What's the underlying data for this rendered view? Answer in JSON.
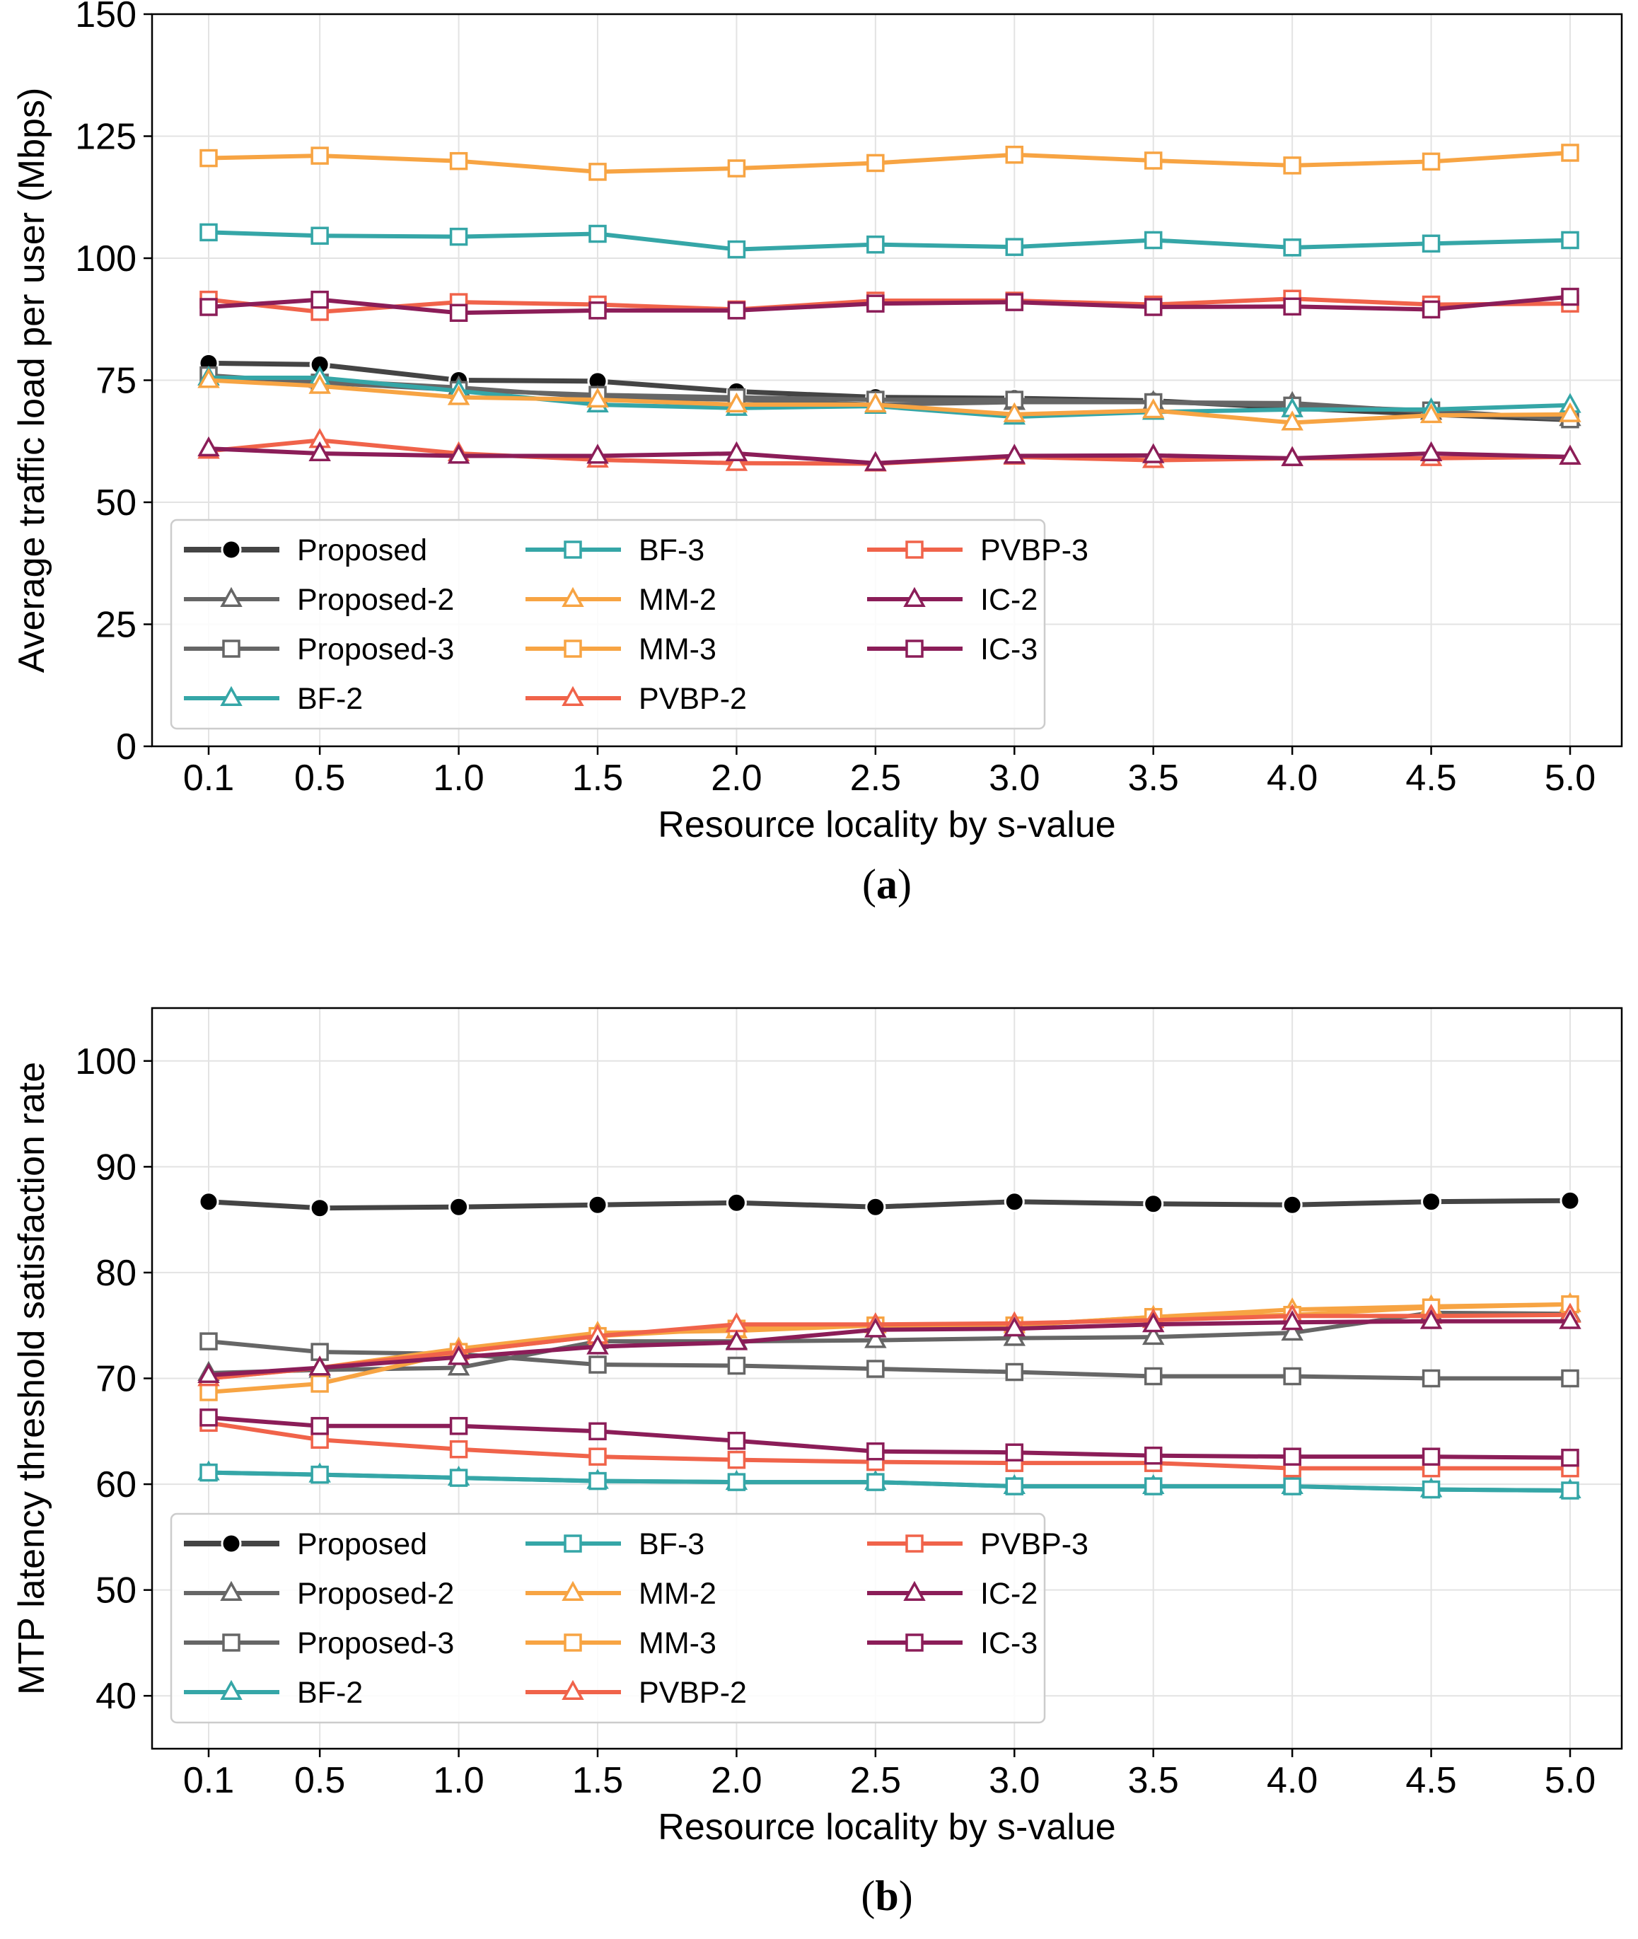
{
  "colors": {
    "proposed": "#000000",
    "gray": "#666666",
    "teal": "#35a6a7",
    "orange": "#f7a443",
    "coral": "#f0634a",
    "plum": "#8b1d58",
    "grid": "#e3e3e3"
  },
  "legend_order": [
    "Proposed",
    "Proposed-2",
    "Proposed-3",
    "BF-2",
    "BF-3",
    "MM-2",
    "MM-3",
    "PVBP-2",
    "PVBP-3",
    "IC-2",
    "IC-3"
  ],
  "chart_data": [
    {
      "id": "a",
      "type": "line",
      "caption_letter": "a",
      "xlabel": "Resource locality by s-value",
      "ylabel": "Average traffic load per user (Mbps)",
      "categories": [
        "0.1",
        "0.5",
        "1.0",
        "1.5",
        "2.0",
        "2.5",
        "3.0",
        "3.5",
        "4.0",
        "4.5",
        "5.0"
      ],
      "ylim": [
        0,
        150
      ],
      "yticks": [
        "0",
        "25",
        "50",
        "75",
        "100",
        "125",
        "150"
      ],
      "grid": true,
      "legend_position": "lower-left",
      "series": [
        {
          "name": "Proposed",
          "color": "#444444",
          "marker": "dot",
          "values": [
            78.5,
            78.2,
            75.0,
            74.8,
            72.7,
            71.5,
            71.3,
            70.8,
            69.3,
            68.0,
            66.9
          ]
        },
        {
          "name": "Proposed-2",
          "color": "#666666",
          "marker": "triangle",
          "values": [
            75.5,
            75.0,
            73.5,
            71.5,
            71.0,
            70.0,
            70.5,
            70.5,
            70.3,
            68.5,
            67.2
          ]
        },
        {
          "name": "Proposed-3",
          "color": "#666666",
          "marker": "square",
          "values": [
            76.0,
            74.5,
            73.0,
            72.0,
            71.5,
            71.0,
            71.0,
            70.5,
            69.8,
            68.8,
            67.0
          ]
        },
        {
          "name": "BF-2",
          "color": "#35a6a7",
          "marker": "triangle",
          "values": [
            75.5,
            75.5,
            72.8,
            70.0,
            69.3,
            69.7,
            67.5,
            68.5,
            69.0,
            69.0,
            69.9
          ]
        },
        {
          "name": "BF-3",
          "color": "#35a6a7",
          "marker": "square",
          "values": [
            105.3,
            104.6,
            104.4,
            105.0,
            101.8,
            102.8,
            102.3,
            103.7,
            102.2,
            103.0,
            103.7
          ]
        },
        {
          "name": "MM-2",
          "color": "#f7a443",
          "marker": "triangle",
          "values": [
            75.0,
            73.8,
            71.5,
            71.0,
            70.0,
            70.0,
            68.0,
            68.8,
            66.3,
            67.8,
            68.0
          ]
        },
        {
          "name": "MM-3",
          "color": "#f7a443",
          "marker": "square",
          "values": [
            120.5,
            121.0,
            119.9,
            117.7,
            118.4,
            119.5,
            121.2,
            120.0,
            119.0,
            119.8,
            121.6
          ]
        },
        {
          "name": "PVBP-2",
          "color": "#f0634a",
          "marker": "triangle",
          "values": [
            60.5,
            62.7,
            60.0,
            58.7,
            58.0,
            57.9,
            59.3,
            58.6,
            59.0,
            59.0,
            59.3
          ]
        },
        {
          "name": "PVBP-3",
          "color": "#f0634a",
          "marker": "square",
          "values": [
            91.5,
            89.0,
            91.0,
            90.5,
            89.5,
            91.3,
            91.3,
            90.5,
            91.7,
            90.5,
            90.7
          ]
        },
        {
          "name": "IC-2",
          "color": "#8b1d58",
          "marker": "triangle",
          "values": [
            61.0,
            60.0,
            59.5,
            59.5,
            60.0,
            58.0,
            59.5,
            59.6,
            59.0,
            60.0,
            59.3
          ]
        },
        {
          "name": "IC-3",
          "color": "#8b1d58",
          "marker": "square",
          "values": [
            90.0,
            91.5,
            88.8,
            89.3,
            89.3,
            90.7,
            91.0,
            90.0,
            90.1,
            89.5,
            92.1
          ]
        }
      ]
    },
    {
      "id": "b",
      "type": "line",
      "caption_letter": "b",
      "xlabel": "Resource locality by s-value",
      "ylabel": "MTP latency threshold satisfaction rate",
      "categories": [
        "0.1",
        "0.5",
        "1.0",
        "1.5",
        "2.0",
        "2.5",
        "3.0",
        "3.5",
        "4.0",
        "4.5",
        "5.0"
      ],
      "ylim": [
        35,
        105
      ],
      "yticks": [
        "40",
        "50",
        "60",
        "70",
        "80",
        "90",
        "100"
      ],
      "grid": true,
      "legend_position": "lower-left",
      "series": [
        {
          "name": "Proposed",
          "color": "#444444",
          "marker": "dot",
          "values": [
            86.7,
            86.1,
            86.2,
            86.4,
            86.6,
            86.2,
            86.7,
            86.5,
            86.4,
            86.7,
            86.8
          ]
        },
        {
          "name": "Proposed-2",
          "color": "#666666",
          "marker": "triangle",
          "values": [
            70.5,
            70.8,
            71.0,
            73.5,
            73.5,
            73.6,
            73.8,
            73.9,
            74.3,
            76.2,
            76.1
          ]
        },
        {
          "name": "Proposed-3",
          "color": "#666666",
          "marker": "square",
          "values": [
            73.5,
            72.5,
            72.3,
            71.3,
            71.2,
            70.9,
            70.6,
            70.2,
            70.2,
            70.0,
            70.0
          ]
        },
        {
          "name": "BF-2",
          "color": "#35a6a7",
          "marker": "triangle",
          "values": [
            61.1,
            60.9,
            60.6,
            60.3,
            60.2,
            60.2,
            59.8,
            59.8,
            59.8,
            59.5,
            59.4
          ]
        },
        {
          "name": "BF-3",
          "color": "#35a6a7",
          "marker": "square",
          "values": [
            61.1,
            60.9,
            60.6,
            60.3,
            60.2,
            60.2,
            59.8,
            59.8,
            59.8,
            59.5,
            59.4
          ]
        },
        {
          "name": "MM-2",
          "color": "#f7a443",
          "marker": "triangle",
          "values": [
            70.0,
            71.0,
            72.8,
            74.3,
            74.5,
            75.0,
            75.0,
            75.8,
            76.5,
            76.8,
            77.0
          ]
        },
        {
          "name": "MM-3",
          "color": "#f7a443",
          "marker": "square",
          "values": [
            68.7,
            69.5,
            72.5,
            74.0,
            74.7,
            75.0,
            75.0,
            75.8,
            76.0,
            76.7,
            77.0
          ]
        },
        {
          "name": "PVBP-2",
          "color": "#f0634a",
          "marker": "triangle",
          "values": [
            70.0,
            71.0,
            72.5,
            74.0,
            75.1,
            75.1,
            75.2,
            75.5,
            75.9,
            75.9,
            76.0
          ]
        },
        {
          "name": "PVBP-3",
          "color": "#f0634a",
          "marker": "square",
          "values": [
            65.8,
            64.2,
            63.3,
            62.6,
            62.3,
            62.1,
            62.0,
            62.0,
            61.5,
            61.5,
            61.5
          ]
        },
        {
          "name": "IC-2",
          "color": "#8b1d58",
          "marker": "triangle",
          "values": [
            70.3,
            71.0,
            72.0,
            73.0,
            73.4,
            74.6,
            74.7,
            75.1,
            75.3,
            75.4,
            75.4
          ]
        },
        {
          "name": "IC-3",
          "color": "#8b1d58",
          "marker": "square",
          "values": [
            66.3,
            65.5,
            65.5,
            65.0,
            64.1,
            63.1,
            63.0,
            62.7,
            62.6,
            62.6,
            62.5
          ]
        }
      ]
    }
  ]
}
